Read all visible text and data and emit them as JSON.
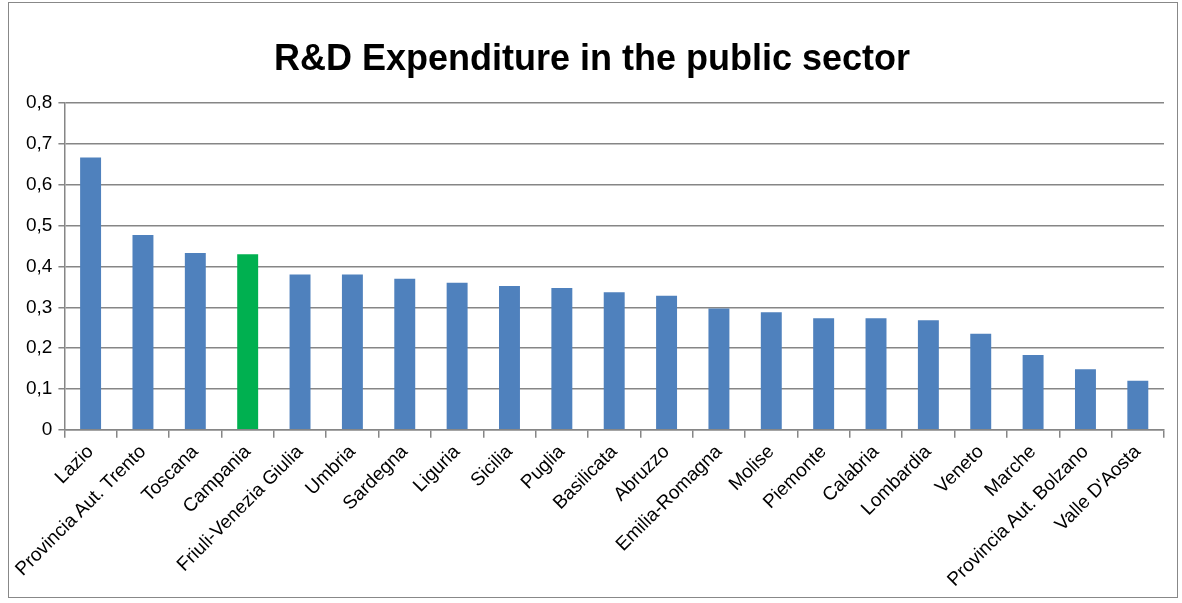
{
  "chart_data": {
    "type": "bar",
    "title": "R&D Expenditure in the public sector",
    "categories": [
      "Lazio",
      "Provincia Aut. Trento",
      "Toscana",
      "Campania",
      "Friuli-Venezia Giulia",
      "Umbria",
      "Sardegna",
      "Liguria",
      "Sicilia",
      "Puglia",
      "Basilicata",
      "Abruzzo",
      "Emilia-Romagna",
      "Molise",
      "Piemonte",
      "Calabria",
      "Lombardia",
      "Veneto",
      "Marche",
      "Provincia Aut. Bolzano",
      "Valle D'Aosta"
    ],
    "values": [
      0.667,
      0.477,
      0.433,
      0.43,
      0.38,
      0.38,
      0.37,
      0.36,
      0.352,
      0.347,
      0.337,
      0.328,
      0.297,
      0.288,
      0.273,
      0.273,
      0.268,
      0.235,
      0.183,
      0.148,
      0.12
    ],
    "colors": [
      "#4f81bd",
      "#4f81bd",
      "#4f81bd",
      "#00b050",
      "#4f81bd",
      "#4f81bd",
      "#4f81bd",
      "#4f81bd",
      "#4f81bd",
      "#4f81bd",
      "#4f81bd",
      "#4f81bd",
      "#4f81bd",
      "#4f81bd",
      "#4f81bd",
      "#4f81bd",
      "#4f81bd",
      "#4f81bd",
      "#4f81bd",
      "#4f81bd",
      "#4f81bd"
    ],
    "ylim": [
      0,
      0.8
    ],
    "yticks": [
      {
        "value": 0,
        "label": "0"
      },
      {
        "value": 0.1,
        "label": "0,1"
      },
      {
        "value": 0.2,
        "label": "0,2"
      },
      {
        "value": 0.3,
        "label": "0,3"
      },
      {
        "value": 0.4,
        "label": "0,4"
      },
      {
        "value": 0.5,
        "label": "0,5"
      },
      {
        "value": 0.6,
        "label": "0,6"
      },
      {
        "value": 0.7,
        "label": "0,7"
      },
      {
        "value": 0.8,
        "label": "0,8"
      }
    ],
    "grid": "y",
    "legend": false
  }
}
